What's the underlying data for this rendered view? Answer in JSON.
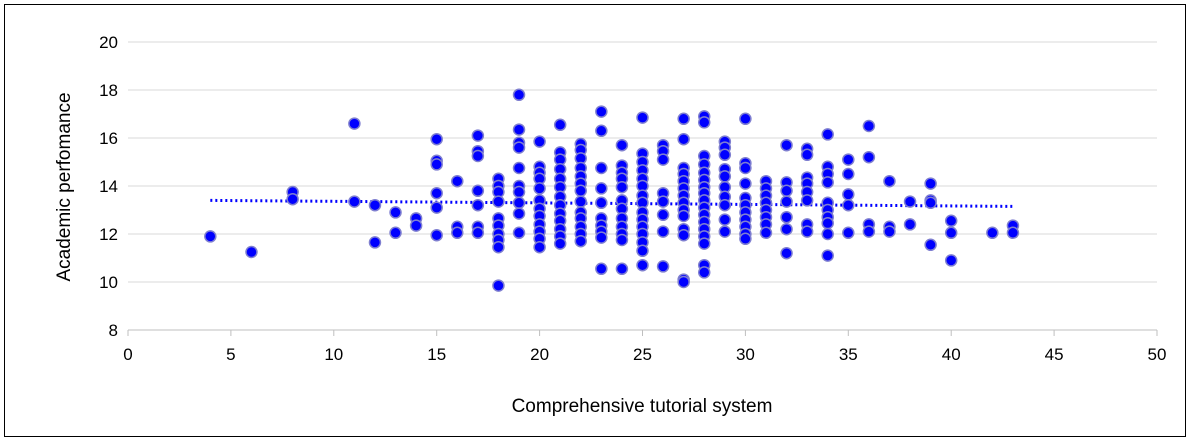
{
  "chart_data": {
    "type": "scatter",
    "title": "",
    "xlabel": "Comprehensive tutorial system",
    "ylabel": "Academic perfomance",
    "xlim": [
      0,
      50
    ],
    "ylim": [
      8,
      20
    ],
    "x_ticks": [
      "0",
      "5",
      "10",
      "15",
      "20",
      "25",
      "30",
      "35",
      "40",
      "45",
      "50"
    ],
    "y_ticks": [
      "8",
      "10",
      "12",
      "14",
      "16",
      "18",
      "20"
    ],
    "grid": "horizontal",
    "legend": "none",
    "marker_color": "#0000ff",
    "marker_edge_color": "#7f7fd0",
    "trendline": {
      "type": "linear",
      "style": "dotted",
      "color": "#0000ff",
      "x": [
        4,
        43
      ],
      "y": [
        13.4,
        13.15
      ]
    },
    "series": [
      {
        "points": [
          [
            4,
            11.9
          ],
          [
            6,
            11.25
          ],
          [
            8,
            13.75
          ],
          [
            8,
            13.45
          ],
          [
            11,
            16.6
          ],
          [
            11,
            13.35
          ],
          [
            12,
            13.2
          ],
          [
            12,
            11.65
          ],
          [
            13,
            12.9
          ],
          [
            13,
            12.05
          ],
          [
            14,
            12.65
          ],
          [
            14,
            12.35
          ],
          [
            15,
            15.95
          ],
          [
            15,
            15.05
          ],
          [
            15,
            14.9
          ],
          [
            15,
            13.7
          ],
          [
            15,
            13.1
          ],
          [
            15,
            11.95
          ],
          [
            16,
            14.2
          ],
          [
            16,
            12.3
          ],
          [
            16,
            12.05
          ],
          [
            17,
            16.1
          ],
          [
            17,
            15.45
          ],
          [
            17,
            15.25
          ],
          [
            17,
            13.8
          ],
          [
            17,
            13.2
          ],
          [
            17,
            12.3
          ],
          [
            17,
            12.05
          ],
          [
            18,
            14.3
          ],
          [
            18,
            14.0
          ],
          [
            18,
            13.75
          ],
          [
            18,
            13.35
          ],
          [
            18,
            12.65
          ],
          [
            18,
            12.35
          ],
          [
            18,
            12.0
          ],
          [
            18,
            11.75
          ],
          [
            18,
            11.45
          ],
          [
            18,
            9.85
          ],
          [
            19,
            17.8
          ],
          [
            19,
            16.35
          ],
          [
            19,
            15.8
          ],
          [
            19,
            15.6
          ],
          [
            19,
            14.75
          ],
          [
            19,
            14.0
          ],
          [
            19,
            13.75
          ],
          [
            19,
            13.3
          ],
          [
            19,
            12.85
          ],
          [
            19,
            12.05
          ],
          [
            20,
            15.85
          ],
          [
            20,
            14.8
          ],
          [
            20,
            14.55
          ],
          [
            20,
            14.3
          ],
          [
            20,
            13.9
          ],
          [
            20,
            13.4
          ],
          [
            20,
            13.05
          ],
          [
            20,
            12.75
          ],
          [
            20,
            12.4
          ],
          [
            20,
            12.1
          ],
          [
            20,
            11.8
          ],
          [
            20,
            11.45
          ],
          [
            21,
            16.55
          ],
          [
            21,
            15.4
          ],
          [
            21,
            15.1
          ],
          [
            21,
            14.7
          ],
          [
            21,
            14.3
          ],
          [
            21,
            13.95
          ],
          [
            21,
            13.55
          ],
          [
            21,
            13.2
          ],
          [
            21,
            12.85
          ],
          [
            21,
            12.55
          ],
          [
            21,
            12.2
          ],
          [
            21,
            11.9
          ],
          [
            21,
            11.6
          ],
          [
            22,
            15.75
          ],
          [
            22,
            15.5
          ],
          [
            22,
            15.15
          ],
          [
            22,
            14.75
          ],
          [
            22,
            14.4
          ],
          [
            22,
            14.1
          ],
          [
            22,
            13.8
          ],
          [
            22,
            13.35
          ],
          [
            22,
            12.9
          ],
          [
            22,
            12.65
          ],
          [
            22,
            12.3
          ],
          [
            22,
            12.0
          ],
          [
            22,
            11.7
          ],
          [
            23,
            17.1
          ],
          [
            23,
            16.3
          ],
          [
            23,
            14.75
          ],
          [
            23,
            13.9
          ],
          [
            23,
            13.3
          ],
          [
            23,
            12.65
          ],
          [
            23,
            12.35
          ],
          [
            23,
            12.1
          ],
          [
            23,
            11.85
          ],
          [
            23,
            10.55
          ],
          [
            24,
            15.7
          ],
          [
            24,
            14.85
          ],
          [
            24,
            14.55
          ],
          [
            24,
            14.3
          ],
          [
            24,
            13.95
          ],
          [
            24,
            13.4
          ],
          [
            24,
            13.05
          ],
          [
            24,
            12.65
          ],
          [
            24,
            12.3
          ],
          [
            24,
            12.0
          ],
          [
            24,
            11.75
          ],
          [
            24,
            10.55
          ],
          [
            25,
            16.85
          ],
          [
            25,
            15.35
          ],
          [
            25,
            15.0
          ],
          [
            25,
            14.65
          ],
          [
            25,
            14.3
          ],
          [
            25,
            14.0
          ],
          [
            25,
            13.6
          ],
          [
            25,
            13.3
          ],
          [
            25,
            12.9
          ],
          [
            25,
            12.6
          ],
          [
            25,
            12.3
          ],
          [
            25,
            12.0
          ],
          [
            25,
            11.65
          ],
          [
            25,
            11.3
          ],
          [
            25,
            10.7
          ],
          [
            26,
            15.7
          ],
          [
            26,
            15.45
          ],
          [
            26,
            15.1
          ],
          [
            26,
            13.7
          ],
          [
            26,
            13.35
          ],
          [
            26,
            12.8
          ],
          [
            26,
            12.1
          ],
          [
            26,
            10.65
          ],
          [
            27,
            16.8
          ],
          [
            27,
            15.95
          ],
          [
            27,
            14.75
          ],
          [
            27,
            14.5
          ],
          [
            27,
            14.2
          ],
          [
            27,
            13.9
          ],
          [
            27,
            13.6
          ],
          [
            27,
            13.3
          ],
          [
            27,
            13.0
          ],
          [
            27,
            12.75
          ],
          [
            27,
            12.2
          ],
          [
            27,
            11.95
          ],
          [
            27,
            10.1
          ],
          [
            27,
            10.0
          ],
          [
            28,
            16.9
          ],
          [
            28,
            16.65
          ],
          [
            28,
            15.25
          ],
          [
            28,
            14.9
          ],
          [
            28,
            14.55
          ],
          [
            28,
            14.25
          ],
          [
            28,
            13.95
          ],
          [
            28,
            13.7
          ],
          [
            28,
            13.4
          ],
          [
            28,
            13.1
          ],
          [
            28,
            12.8
          ],
          [
            28,
            12.5
          ],
          [
            28,
            12.2
          ],
          [
            28,
            11.9
          ],
          [
            28,
            11.6
          ],
          [
            28,
            10.7
          ],
          [
            28,
            10.4
          ],
          [
            29,
            15.85
          ],
          [
            29,
            15.6
          ],
          [
            29,
            15.3
          ],
          [
            29,
            14.7
          ],
          [
            29,
            14.4
          ],
          [
            29,
            13.95
          ],
          [
            29,
            13.55
          ],
          [
            29,
            13.2
          ],
          [
            29,
            12.6
          ],
          [
            29,
            12.1
          ],
          [
            30,
            16.8
          ],
          [
            30,
            14.95
          ],
          [
            30,
            14.75
          ],
          [
            30,
            14.1
          ],
          [
            30,
            13.5
          ],
          [
            30,
            13.2
          ],
          [
            30,
            12.9
          ],
          [
            30,
            12.6
          ],
          [
            30,
            12.3
          ],
          [
            30,
            12.0
          ],
          [
            30,
            11.8
          ],
          [
            31,
            14.2
          ],
          [
            31,
            13.9
          ],
          [
            31,
            13.6
          ],
          [
            31,
            13.3
          ],
          [
            31,
            13.0
          ],
          [
            31,
            12.7
          ],
          [
            31,
            12.4
          ],
          [
            31,
            12.05
          ],
          [
            32,
            15.7
          ],
          [
            32,
            14.15
          ],
          [
            32,
            13.8
          ],
          [
            32,
            13.35
          ],
          [
            32,
            12.7
          ],
          [
            32,
            12.2
          ],
          [
            32,
            11.2
          ],
          [
            33,
            15.55
          ],
          [
            33,
            15.3
          ],
          [
            33,
            14.35
          ],
          [
            33,
            14.1
          ],
          [
            33,
            13.75
          ],
          [
            33,
            13.4
          ],
          [
            33,
            12.4
          ],
          [
            33,
            12.1
          ],
          [
            34,
            16.15
          ],
          [
            34,
            14.8
          ],
          [
            34,
            14.5
          ],
          [
            34,
            14.15
          ],
          [
            34,
            13.3
          ],
          [
            34,
            13.0
          ],
          [
            34,
            12.7
          ],
          [
            34,
            12.45
          ],
          [
            34,
            12.0
          ],
          [
            34,
            11.1
          ],
          [
            35,
            15.1
          ],
          [
            35,
            14.5
          ],
          [
            35,
            13.65
          ],
          [
            35,
            13.2
          ],
          [
            35,
            12.05
          ],
          [
            36,
            16.5
          ],
          [
            36,
            15.2
          ],
          [
            36,
            12.4
          ],
          [
            36,
            12.1
          ],
          [
            37,
            14.2
          ],
          [
            37,
            12.3
          ],
          [
            37,
            12.1
          ],
          [
            38,
            13.35
          ],
          [
            38,
            12.4
          ],
          [
            39,
            14.1
          ],
          [
            39,
            13.4
          ],
          [
            39,
            13.3
          ],
          [
            39,
            11.55
          ],
          [
            40,
            12.55
          ],
          [
            40,
            12.05
          ],
          [
            40,
            10.9
          ],
          [
            42,
            12.05
          ],
          [
            43,
            12.35
          ],
          [
            43,
            12.05
          ]
        ]
      }
    ]
  }
}
